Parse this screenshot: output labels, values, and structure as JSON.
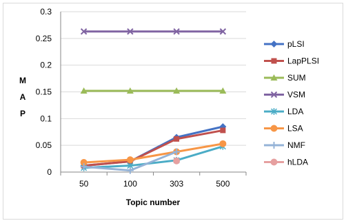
{
  "chart_data": {
    "type": "line",
    "categories": [
      "50",
      "100",
      "303",
      "500"
    ],
    "xlabel": "Topic number",
    "ylabel_letters": [
      "M",
      "A",
      "P"
    ],
    "ylim": [
      0,
      0.3
    ],
    "yticks": [
      "0",
      "0.05",
      "0.1",
      "0.15",
      "0.2",
      "0.25",
      "0.3"
    ],
    "grid": true,
    "legend_position": "right",
    "series": [
      {
        "name": "pLSI",
        "color": "#4472C4",
        "marker": "diamond",
        "values": [
          0.012,
          0.02,
          0.065,
          0.085
        ]
      },
      {
        "name": "LapPLSI",
        "color": "#C0504D",
        "marker": "square",
        "values": [
          0.012,
          0.02,
          0.062,
          0.078
        ]
      },
      {
        "name": "SUM",
        "color": "#9BBB59",
        "marker": "triangle",
        "values": [
          0.152,
          0.152,
          0.152,
          0.152
        ]
      },
      {
        "name": "VSM",
        "color": "#8064A2",
        "marker": "x",
        "values": [
          0.263,
          0.263,
          0.263,
          0.263
        ]
      },
      {
        "name": "LDA",
        "color": "#4BACC6",
        "marker": "asterisk",
        "values": [
          0.008,
          0.012,
          0.022,
          0.048
        ]
      },
      {
        "name": "LSA",
        "color": "#F79646",
        "marker": "circle",
        "values": [
          0.018,
          0.023,
          0.038,
          0.053
        ]
      },
      {
        "name": "NMF",
        "color": "#95B3D7",
        "marker": "plus",
        "values": [
          0.01,
          0.003,
          0.038,
          null
        ]
      },
      {
        "name": "hLDA",
        "color": "#E6A0A0",
        "marker": "circle",
        "values": [
          null,
          null,
          0.021,
          null
        ]
      }
    ]
  }
}
